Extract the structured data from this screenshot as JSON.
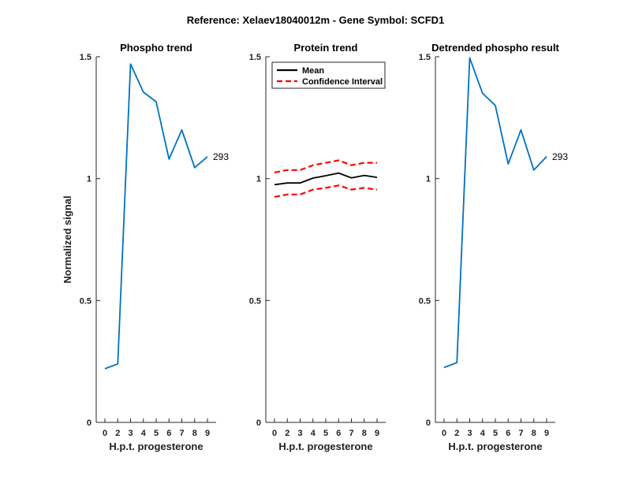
{
  "figure": {
    "suptitle": "Reference:  Xelaev18040012m - Gene Symbol:  SCFD1",
    "background": "#ffffff"
  },
  "chart_data": [
    {
      "type": "line",
      "title": "Phospho trend",
      "xlabel": "H.p.t. progesterone",
      "ylabel": "Normalized signal",
      "xticks": [
        "0",
        "2",
        "3",
        "4",
        "5",
        "6",
        "7",
        "8",
        "9"
      ],
      "yticks": [
        "0",
        "0.5",
        "1",
        "1.5"
      ],
      "ylim": [
        0,
        1.5
      ],
      "end_label": "293",
      "series": [
        {
          "values": [
            0.22,
            0.24,
            1.47,
            1.355,
            1.315,
            1.08,
            1.2,
            1.045,
            1.09
          ],
          "color": "#0072BD",
          "dash": "solid"
        }
      ]
    },
    {
      "type": "line",
      "title": "Protein trend",
      "xlabel": "H.p.t. progesterone",
      "ylabel": "",
      "xticks": [
        "0",
        "2",
        "3",
        "4",
        "5",
        "6",
        "7",
        "8",
        "9"
      ],
      "yticks": [
        "0",
        "0.5",
        "1",
        "1.5"
      ],
      "ylim": [
        0,
        1.5
      ],
      "legend": {
        "position": "top-left",
        "entries": [
          "Mean",
          "Confidence Interval"
        ]
      },
      "series": [
        {
          "name": "Mean",
          "values": [
            0.975,
            0.982,
            0.982,
            1.002,
            1.012,
            1.023,
            1.003,
            1.013,
            1.005
          ],
          "color": "#000000",
          "dash": "solid"
        },
        {
          "name": "Confidence Interval",
          "values": [
            1.025,
            1.035,
            1.035,
            1.055,
            1.065,
            1.075,
            1.055,
            1.065,
            1.065
          ],
          "color": "#FF0000",
          "dash": "dashed"
        },
        {
          "name": "Confidence Interval",
          "values": [
            0.925,
            0.935,
            0.935,
            0.955,
            0.962,
            0.972,
            0.955,
            0.962,
            0.955
          ],
          "color": "#FF0000",
          "dash": "dashed"
        }
      ]
    },
    {
      "type": "line",
      "title": "Detrended phospho result",
      "xlabel": "H.p.t. progesterone",
      "ylabel": "",
      "xticks": [
        "0",
        "2",
        "3",
        "4",
        "5",
        "6",
        "7",
        "8",
        "9"
      ],
      "yticks": [
        "0",
        "0.5",
        "1",
        "1.5"
      ],
      "ylim": [
        0,
        1.5
      ],
      "end_label": "293",
      "series": [
        {
          "values": [
            0.225,
            0.245,
            1.495,
            1.35,
            1.3,
            1.06,
            1.2,
            1.035,
            1.09
          ],
          "color": "#0072BD",
          "dash": "solid"
        }
      ]
    }
  ]
}
